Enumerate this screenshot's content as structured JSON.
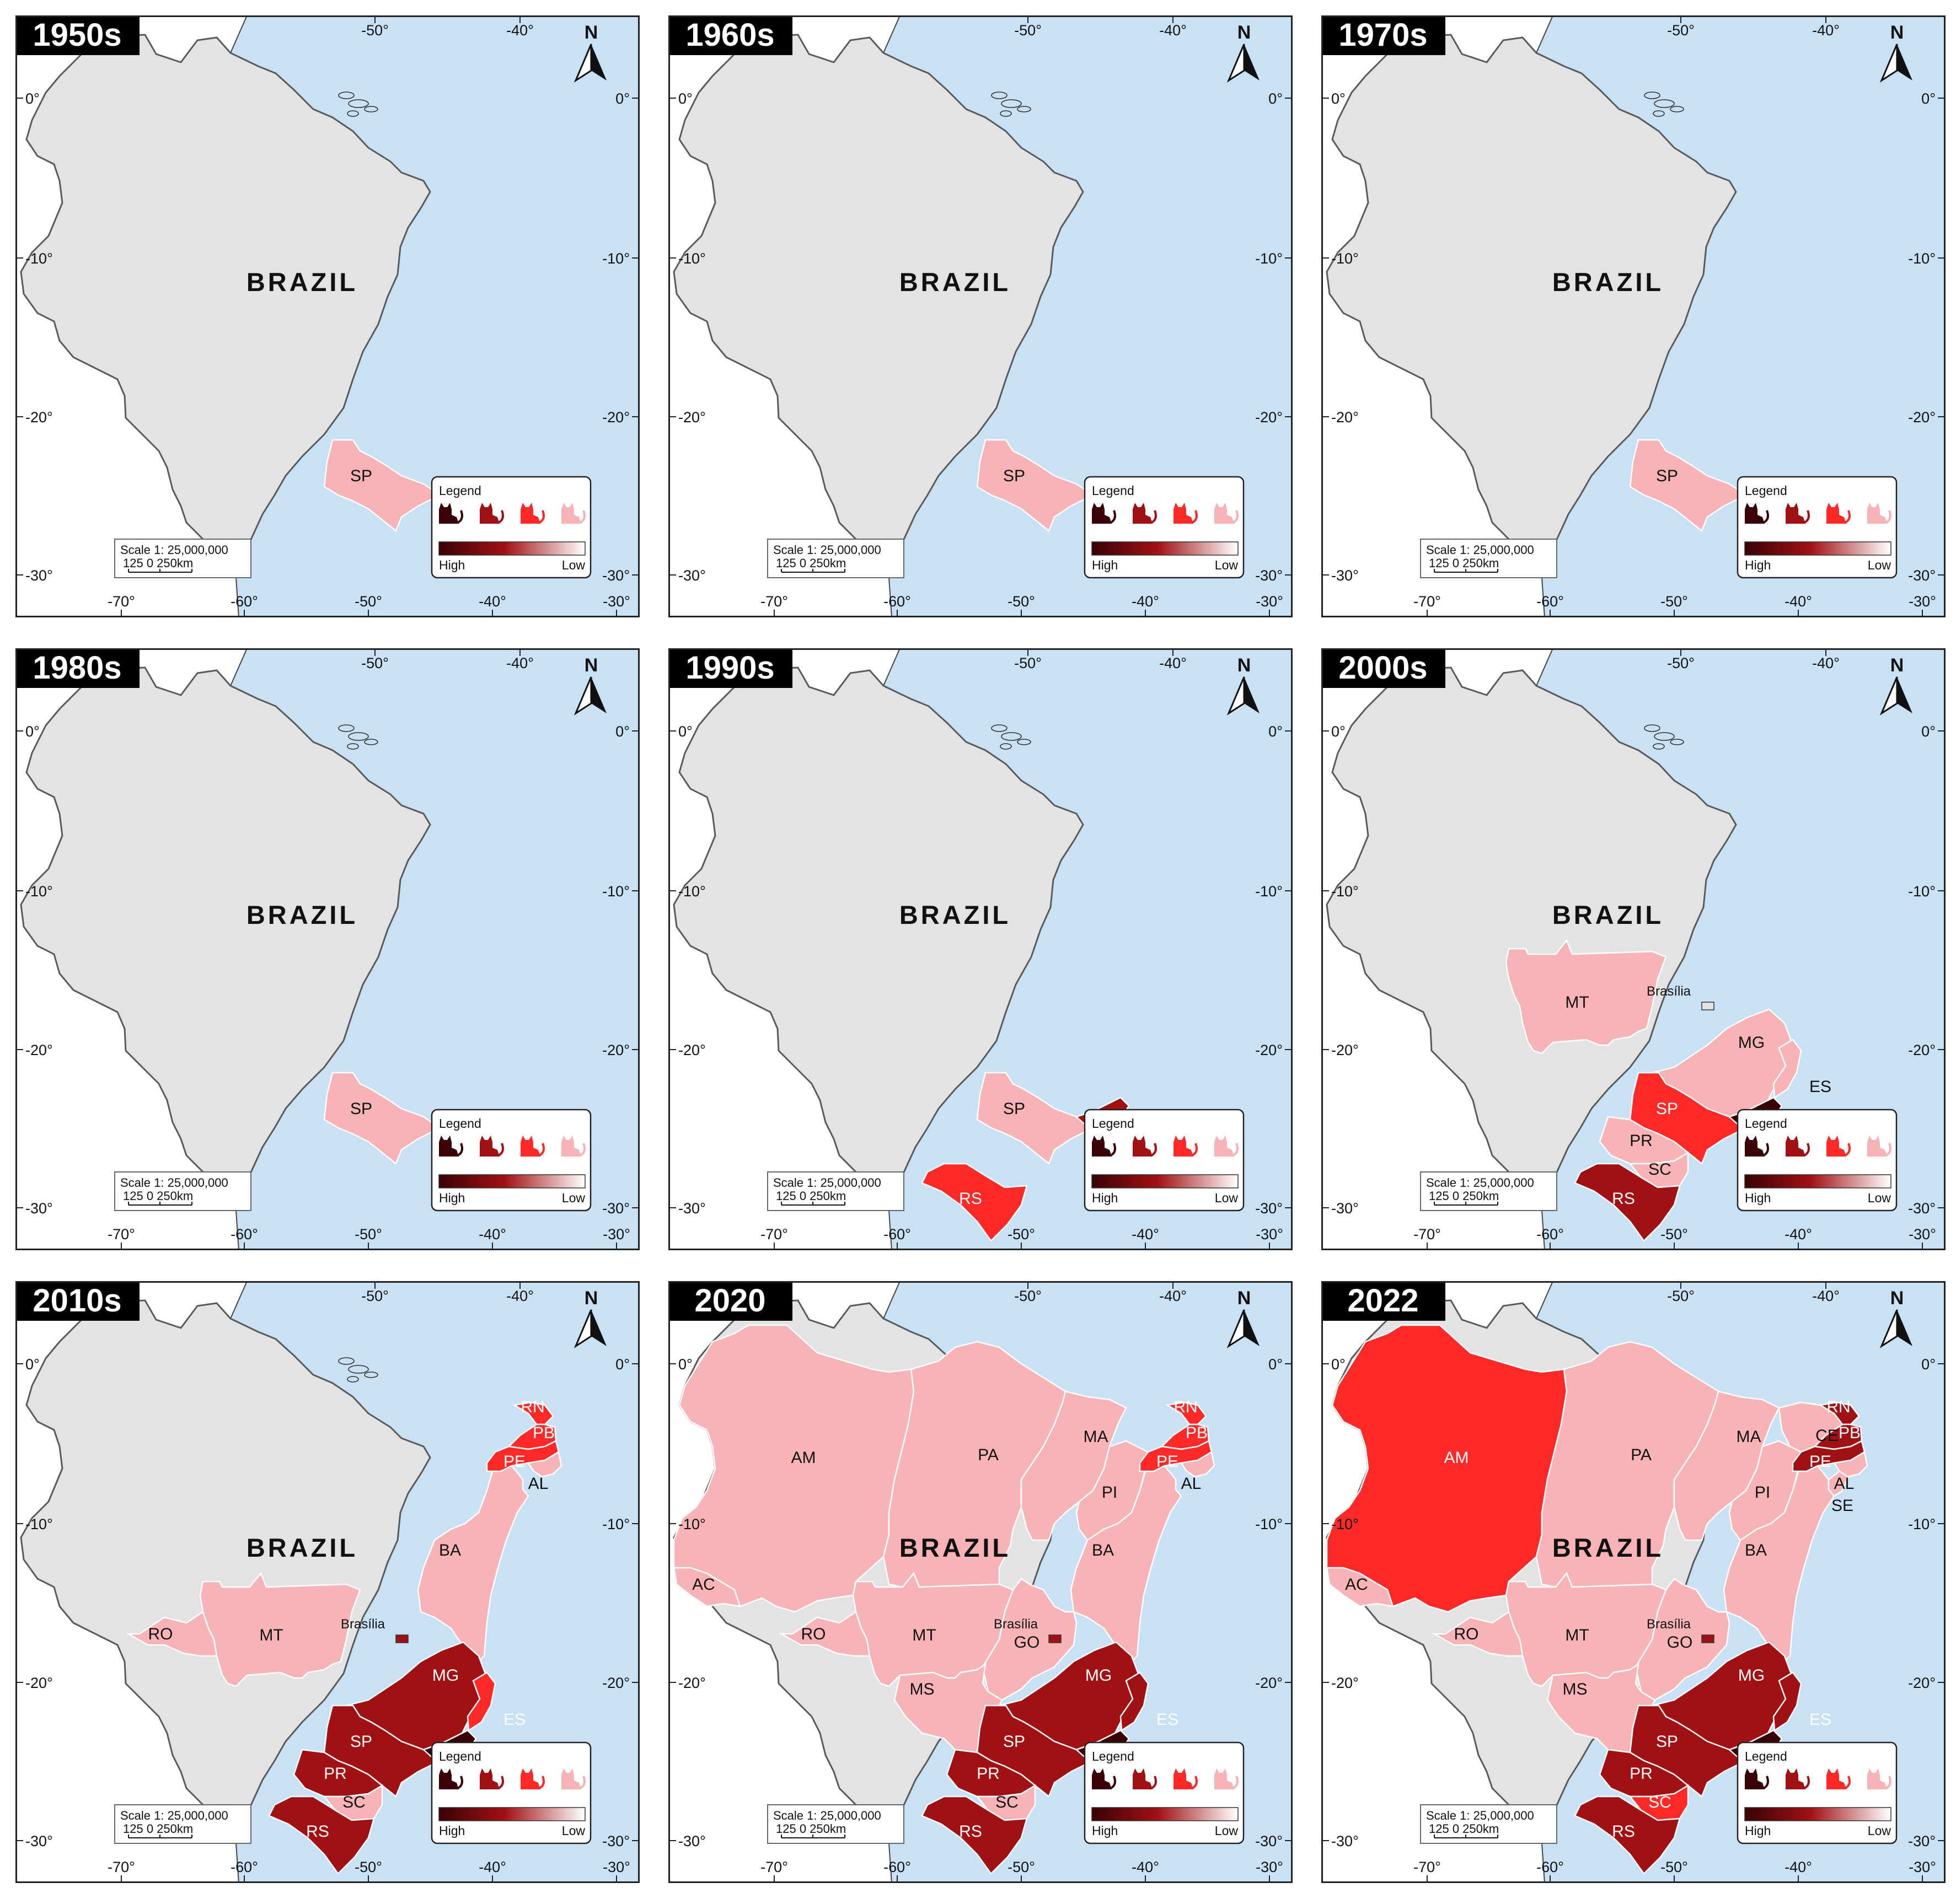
{
  "figure": {
    "country_label": "BRAZIL",
    "north_label": "N",
    "legend": {
      "title": "Legend",
      "high": "High",
      "low": "Low"
    },
    "scale": {
      "line1": "Scale 1: 25,000,000",
      "line2": "125  0   250km"
    },
    "colors": {
      "ocean": "#c9e1f4",
      "neighbors": "#ffffff",
      "no_data": "#e3e3e3",
      "level_4": "#3a0205",
      "level_3": "#a11114",
      "level_2": "#ff2a28",
      "level_1": "#f7b3b6"
    },
    "lon_ticks_top": [
      "-50°",
      "-40°"
    ],
    "lon_ticks_bottom": [
      "-70°",
      "-60°",
      "-50°",
      "-40°",
      "-30°"
    ],
    "lat_ticks_left": [
      "0°",
      "-10°",
      "-20°",
      "-30°"
    ],
    "lat_ticks_right": [
      "0°",
      "-10°",
      "-20°",
      "-30°"
    ]
  },
  "panels": [
    {
      "title": "1950s",
      "capital_label": "",
      "states": [
        {
          "code": "SP",
          "level": 1
        }
      ]
    },
    {
      "title": "1960s",
      "capital_label": "",
      "states": [
        {
          "code": "SP",
          "level": 1
        }
      ]
    },
    {
      "title": "1970s",
      "capital_label": "",
      "states": [
        {
          "code": "SP",
          "level": 1
        }
      ]
    },
    {
      "title": "1980s",
      "capital_label": "",
      "states": [
        {
          "code": "SP",
          "level": 1
        }
      ]
    },
    {
      "title": "1990s",
      "capital_label": "",
      "states": [
        {
          "code": "SP",
          "level": 1
        },
        {
          "code": "RJ",
          "level": 3
        },
        {
          "code": "RS",
          "level": 2
        }
      ]
    },
    {
      "title": "2000s",
      "capital_label": "Brasília",
      "states": [
        {
          "code": "MT",
          "level": 1
        },
        {
          "code": "MG",
          "level": 1
        },
        {
          "code": "ES",
          "level": 1
        },
        {
          "code": "SP",
          "level": 2
        },
        {
          "code": "RJ",
          "level": 4
        },
        {
          "code": "PR",
          "level": 1
        },
        {
          "code": "SC",
          "level": 1
        },
        {
          "code": "RS",
          "level": 3
        }
      ]
    },
    {
      "title": "2010s",
      "capital_label": "Brasília",
      "states": [
        {
          "code": "RO",
          "level": 1
        },
        {
          "code": "MT",
          "level": 1
        },
        {
          "code": "BA",
          "level": 1
        },
        {
          "code": "MG",
          "level": 3
        },
        {
          "code": "ES",
          "level": 2
        },
        {
          "code": "SP",
          "level": 3
        },
        {
          "code": "RJ",
          "level": 4
        },
        {
          "code": "PR",
          "level": 3
        },
        {
          "code": "SC",
          "level": 1
        },
        {
          "code": "RS",
          "level": 3
        },
        {
          "code": "RN",
          "level": 2
        },
        {
          "code": "PB",
          "level": 2
        },
        {
          "code": "PE",
          "level": 2
        },
        {
          "code": "AL",
          "level": 1
        }
      ]
    },
    {
      "title": "2020",
      "capital_label": "Brasília",
      "states": [
        {
          "code": "AC",
          "level": 1
        },
        {
          "code": "AM",
          "level": 1
        },
        {
          "code": "PA",
          "level": 1
        },
        {
          "code": "RO",
          "level": 1
        },
        {
          "code": "MT",
          "level": 1
        },
        {
          "code": "MA",
          "level": 1
        },
        {
          "code": "PI",
          "level": 1
        },
        {
          "code": "BA",
          "level": 1
        },
        {
          "code": "GO",
          "level": 1
        },
        {
          "code": "MS",
          "level": 1
        },
        {
          "code": "MG",
          "level": 3
        },
        {
          "code": "ES",
          "level": 3
        },
        {
          "code": "SP",
          "level": 3
        },
        {
          "code": "RJ",
          "level": 4
        },
        {
          "code": "PR",
          "level": 3
        },
        {
          "code": "SC",
          "level": 1
        },
        {
          "code": "RS",
          "level": 3
        },
        {
          "code": "RN",
          "level": 2
        },
        {
          "code": "PB",
          "level": 2
        },
        {
          "code": "PE",
          "level": 2
        },
        {
          "code": "AL",
          "level": 1
        }
      ]
    },
    {
      "title": "2022",
      "capital_label": "Brasília",
      "states": [
        {
          "code": "AC",
          "level": 1
        },
        {
          "code": "AM",
          "level": 2
        },
        {
          "code": "PA",
          "level": 1
        },
        {
          "code": "RO",
          "level": 1
        },
        {
          "code": "MT",
          "level": 1
        },
        {
          "code": "MA",
          "level": 1
        },
        {
          "code": "CE",
          "level": 1
        },
        {
          "code": "PI",
          "level": 1
        },
        {
          "code": "BA",
          "level": 1
        },
        {
          "code": "SE",
          "level": 1
        },
        {
          "code": "GO",
          "level": 1
        },
        {
          "code": "MS",
          "level": 1
        },
        {
          "code": "MG",
          "level": 3
        },
        {
          "code": "ES",
          "level": 3
        },
        {
          "code": "SP",
          "level": 3
        },
        {
          "code": "RJ",
          "level": 4
        },
        {
          "code": "PR",
          "level": 3
        },
        {
          "code": "SC",
          "level": 2
        },
        {
          "code": "RS",
          "level": 3
        },
        {
          "code": "RN",
          "level": 3
        },
        {
          "code": "PB",
          "level": 3
        },
        {
          "code": "PE",
          "level": 3
        },
        {
          "code": "AL",
          "level": 1
        }
      ]
    }
  ]
}
